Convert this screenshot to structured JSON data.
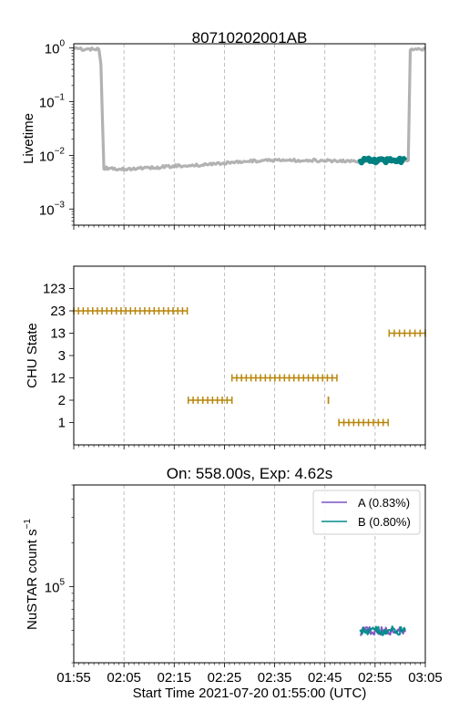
{
  "chart_data": [
    {
      "type": "line",
      "title": "80710202001AB",
      "ylabel": "Livetime",
      "yscale": "log",
      "ylim": [
        0.0005,
        1.2
      ],
      "yticks": [
        {
          "value": 1,
          "base": "10",
          "exp": "0"
        },
        {
          "value": 0.1,
          "base": "10",
          "exp": "−1"
        },
        {
          "value": 0.01,
          "base": "10",
          "exp": "−2"
        },
        {
          "value": 0.001,
          "base": "10",
          "exp": "−3"
        }
      ],
      "xlim_minutes": [
        0,
        70
      ],
      "grid": "vertical-dashed",
      "series": [
        {
          "color": "#aaaaaa",
          "x_minutes": [
            0,
            5,
            5.4,
            6,
            10,
            15,
            20,
            25,
            30,
            35,
            40,
            45,
            50,
            55,
            64.4,
            66.6,
            67,
            70
          ],
          "y": [
            0.95,
            0.95,
            0.5,
            0.0058,
            0.0055,
            0.0058,
            0.0063,
            0.0066,
            0.0072,
            0.0078,
            0.008,
            0.0081,
            0.008,
            0.0078,
            0.0079,
            0.008,
            0.95,
            0.95
          ]
        },
        {
          "color": "#008080",
          "x_minutes": [
            57,
            59,
            61,
            63,
            66
          ],
          "y": [
            0.0078,
            0.0081,
            0.0079,
            0.0082,
            0.008
          ]
        }
      ]
    },
    {
      "type": "scatter",
      "ylabel": "CHU State",
      "categories": [
        "1",
        "2",
        "12",
        "3",
        "13",
        "23",
        "123"
      ],
      "xlim_minutes": [
        0,
        70
      ],
      "grid": "vertical-dashed",
      "marker_color": "#b8860b",
      "segments": [
        {
          "state": "23",
          "x_start": 0,
          "x_end": 22.6
        },
        {
          "state": "2",
          "x_start": 22.8,
          "x_end": 31.5
        },
        {
          "state": "12",
          "x_start": 31.5,
          "x_end": 52.4
        },
        {
          "state": "2",
          "x_start": 50.7,
          "x_end": 50.7
        },
        {
          "state": "1",
          "x_start": 52.8,
          "x_end": 62.6
        },
        {
          "state": "13",
          "x_start": 62.8,
          "x_end": 70
        }
      ]
    },
    {
      "type": "line",
      "title": "On: 558.00s, Exp: 4.62s",
      "ylabel": "NuSTAR count s",
      "ylabel_sup": "−1",
      "yscale": "log",
      "ylim": [
        30000,
        500000
      ],
      "yticks": [
        {
          "value": 100000,
          "base": "10",
          "exp": "5"
        }
      ],
      "xlabel": "Start Time 2021-07-20 01:55:00 (UTC)",
      "xticks": [
        "01:55",
        "02:05",
        "02:15",
        "02:25",
        "02:35",
        "02:45",
        "02:55",
        "03:05"
      ],
      "xlim_minutes": [
        0,
        70
      ],
      "grid": "vertical-dashed",
      "legend": "top-right",
      "series": [
        {
          "name": "A (0.83%)",
          "color": "#7b52c1",
          "x_minutes": [
            57,
            58.5,
            60,
            61.5,
            63,
            64.5,
            66
          ],
          "y": [
            49000,
            50500,
            48500,
            50000,
            49200,
            50800,
            48800
          ]
        },
        {
          "name": "B (0.80%)",
          "color": "#008b8b",
          "x_minutes": [
            57,
            58.5,
            60,
            61.5,
            63,
            64.5,
            66
          ],
          "y": [
            50500,
            49200,
            51000,
            48800,
            50600,
            49400,
            50200
          ]
        }
      ]
    }
  ]
}
